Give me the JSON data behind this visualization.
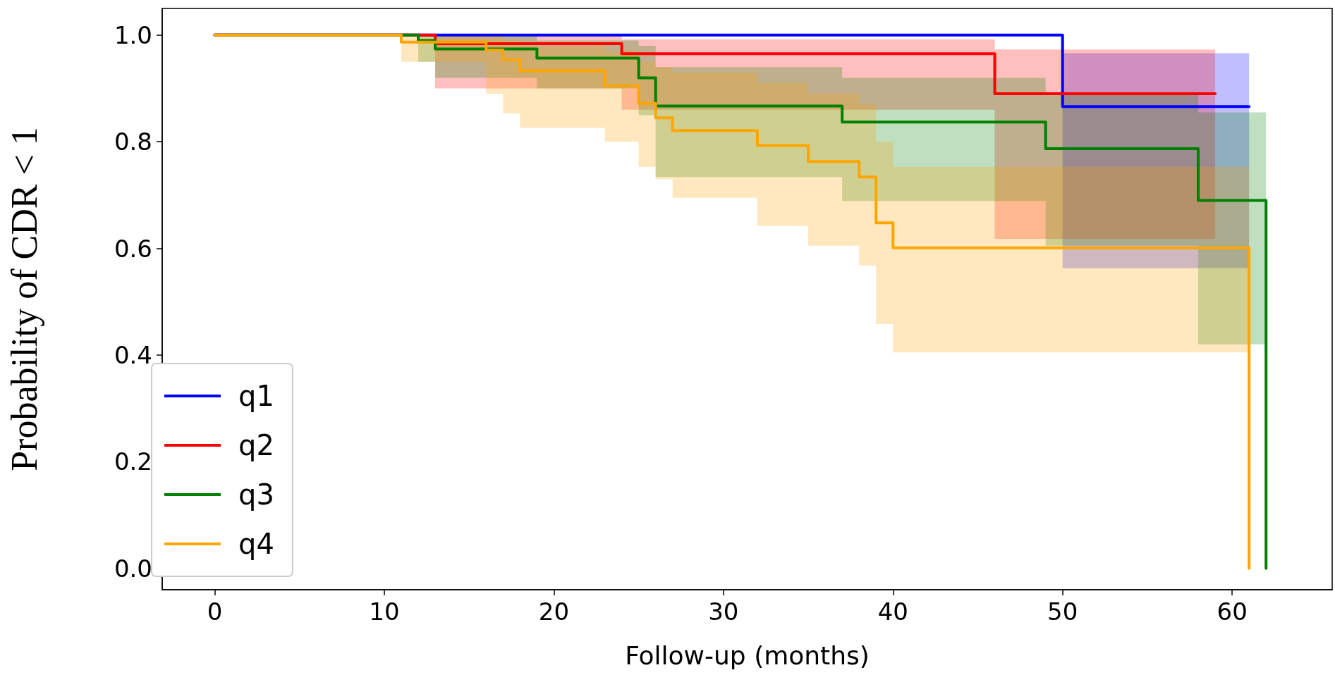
{
  "chart_data": {
    "type": "step",
    "xlabel": "Follow-up (months)",
    "ylabel": "Probability of CDR < 1",
    "xlim": [
      -3.1,
      65.9
    ],
    "xticks": [
      0,
      10,
      20,
      30,
      40,
      50,
      60
    ],
    "ylim": [
      -0.04,
      1.05
    ],
    "yticks": [
      {
        "value": 0,
        "label": "0.0"
      },
      {
        "value": 0.2,
        "label": "0.2"
      },
      {
        "value": 0.4,
        "label": "0.4"
      },
      {
        "value": 0.6,
        "label": "0.6"
      },
      {
        "value": 0.8,
        "label": "0.8"
      },
      {
        "value": 1,
        "label": "1.0"
      }
    ],
    "grid": false,
    "legend": "bottom left",
    "marker": "none",
    "line_style": "solid",
    "series": [
      {
        "name": "q1",
        "color": "#0000ff",
        "x": [
          0,
          50,
          61
        ],
        "values": [
          1,
          0.866,
          0.866
        ],
        "lower": [
          null,
          0.563,
          0.563
        ],
        "upper": [
          null,
          0.966,
          0.966
        ]
      },
      {
        "name": "q2",
        "color": "#ff0000",
        "x": [
          0,
          13,
          24,
          46,
          59
        ],
        "values": [
          1,
          0.984,
          0.965,
          0.89,
          0.89
        ],
        "lower": [
          null,
          0.9,
          0.86,
          0.618,
          0.618
        ],
        "upper": [
          null,
          1,
          0.992,
          0.973,
          0.973
        ]
      },
      {
        "name": "q3",
        "color": "#008000",
        "x": [
          0,
          12,
          13,
          19,
          25,
          26,
          37,
          49,
          58,
          62,
          62
        ],
        "values": [
          1,
          0.99,
          0.974,
          0.957,
          0.92,
          0.867,
          0.837,
          0.787,
          0.69,
          0.69,
          0
        ],
        "lower": [
          null,
          0.95,
          0.92,
          0.9,
          0.85,
          0.734,
          0.689,
          0.605,
          0.42,
          0.42,
          null
        ],
        "upper": [
          null,
          1,
          1,
          0.99,
          0.98,
          0.94,
          0.92,
          0.89,
          0.855,
          0.855,
          null
        ]
      },
      {
        "name": "q4",
        "color": "#ffa500",
        "x": [
          0,
          11,
          16,
          17,
          18,
          23,
          25,
          26,
          27,
          32,
          35,
          38,
          39,
          40,
          61,
          61
        ],
        "values": [
          1,
          0.987,
          0.972,
          0.954,
          0.933,
          0.905,
          0.872,
          0.845,
          0.821,
          0.793,
          0.763,
          0.734,
          0.648,
          0.601,
          0.601,
          0
        ],
        "lower": [
          null,
          0.95,
          0.89,
          0.853,
          0.826,
          0.8,
          0.753,
          0.73,
          0.695,
          0.642,
          0.605,
          0.568,
          0.458,
          0.405,
          0.405,
          null
        ],
        "upper": [
          null,
          1,
          1,
          0.99,
          0.98,
          0.97,
          0.95,
          0.94,
          0.93,
          0.91,
          0.89,
          0.87,
          0.8,
          0.753,
          0.753,
          null
        ]
      }
    ]
  }
}
